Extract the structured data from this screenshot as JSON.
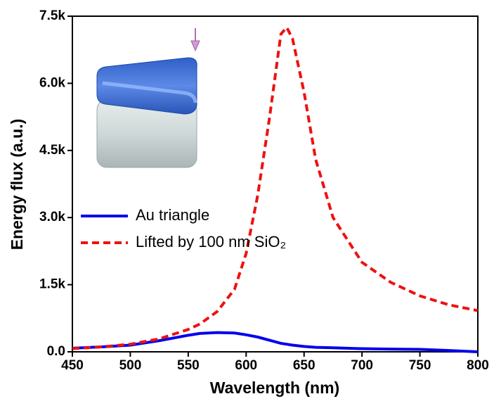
{
  "chart_data": {
    "type": "line",
    "xlabel": "Wavelength (nm)",
    "ylabel": "Energy flux (a.u.)",
    "x": [
      450,
      475,
      500,
      525,
      550,
      560,
      575,
      590,
      600,
      610,
      620,
      630,
      635,
      640,
      650,
      660,
      675,
      700,
      725,
      750,
      775,
      800
    ],
    "series": [
      {
        "name": "Au triangle",
        "color": "#0000ee",
        "dash": false,
        "values": [
          80,
          110,
          150,
          250,
          370,
          410,
          430,
          420,
          380,
          330,
          260,
          190,
          170,
          150,
          120,
          100,
          90,
          70,
          60,
          55,
          30,
          0
        ]
      },
      {
        "name": "Lifted by 100 nm SiO₂",
        "color": "#ee1111",
        "dash": true,
        "values": [
          70,
          110,
          170,
          290,
          500,
          620,
          900,
          1400,
          2200,
          3500,
          5200,
          7100,
          7250,
          7000,
          5800,
          4300,
          3000,
          2000,
          1550,
          1250,
          1050,
          920
        ]
      }
    ],
    "xlim": [
      450,
      800
    ],
    "xticks": [
      450,
      500,
      550,
      600,
      650,
      700,
      750,
      800
    ],
    "ylim": [
      0,
      7500
    ],
    "yticks": [
      {
        "value": 0,
        "label": "0.0"
      },
      {
        "value": 1500,
        "label": "1.5k"
      },
      {
        "value": 3000,
        "label": "3.0k"
      },
      {
        "value": 4500,
        "label": "4.5k"
      },
      {
        "value": 6000,
        "label": "6.0k"
      },
      {
        "value": 7500,
        "label": "7.5k"
      }
    ],
    "legend": "middle-left"
  }
}
